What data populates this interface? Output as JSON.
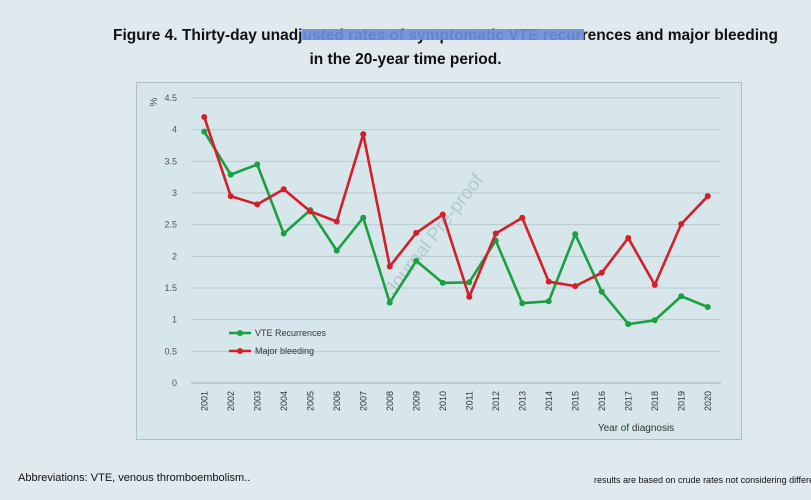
{
  "chart_data": {
    "type": "line",
    "title": "Figure 4.  Thirty-day unadjusted rates of symptomatic VTE recurrences and major bleeding in the 20-year time period.",
    "title_line1": "Figure 4.  Thirty-day unadjusted rates of symptomatic VTE recurrences and major bleeding",
    "title_line2": "in the 20-year time period.",
    "xlabel": "Year of diagnosis",
    "ylabel": "%",
    "ylim": [
      0,
      4.5
    ],
    "yticks": [
      "0",
      "0.5",
      "1",
      "1.5",
      "2",
      "2.5",
      "3",
      "3.5",
      "4",
      "4.5"
    ],
    "yticks_values": [
      0,
      0.5,
      1,
      1.5,
      2,
      2.5,
      3,
      3.5,
      4,
      4.5
    ],
    "x": [
      "2001",
      "2002",
      "2003",
      "2004",
      "2005",
      "2006",
      "2007",
      "2008",
      "2009",
      "2010",
      "2011",
      "2012",
      "2013",
      "2014",
      "2015",
      "2016",
      "2017",
      "2018",
      "2019",
      "2020"
    ],
    "grid": true,
    "legend_position": "bottom-left",
    "series": [
      {
        "name": "VTE Recurrences",
        "color": "#1aa040",
        "values": [
          3.97,
          3.29,
          3.45,
          2.36,
          2.73,
          2.09,
          2.61,
          1.27,
          1.93,
          1.58,
          1.59,
          2.25,
          1.26,
          1.29,
          2.35,
          1.44,
          0.93,
          0.99,
          1.37,
          1.2
        ]
      },
      {
        "name": "Major bleeding",
        "color": "#d21f2a",
        "values": [
          4.2,
          2.95,
          2.82,
          3.06,
          2.71,
          2.55,
          3.93,
          1.84,
          2.37,
          2.66,
          1.36,
          2.36,
          2.61,
          1.6,
          1.53,
          1.74,
          2.29,
          1.55,
          2.51,
          2.95
        ]
      }
    ]
  },
  "watermark": "Journal Pre-proof",
  "footer": {
    "abbreviations": "Abbreviations: VTE, venous thromboembolism..",
    "note": "results are based on crude rates not considering differences"
  }
}
